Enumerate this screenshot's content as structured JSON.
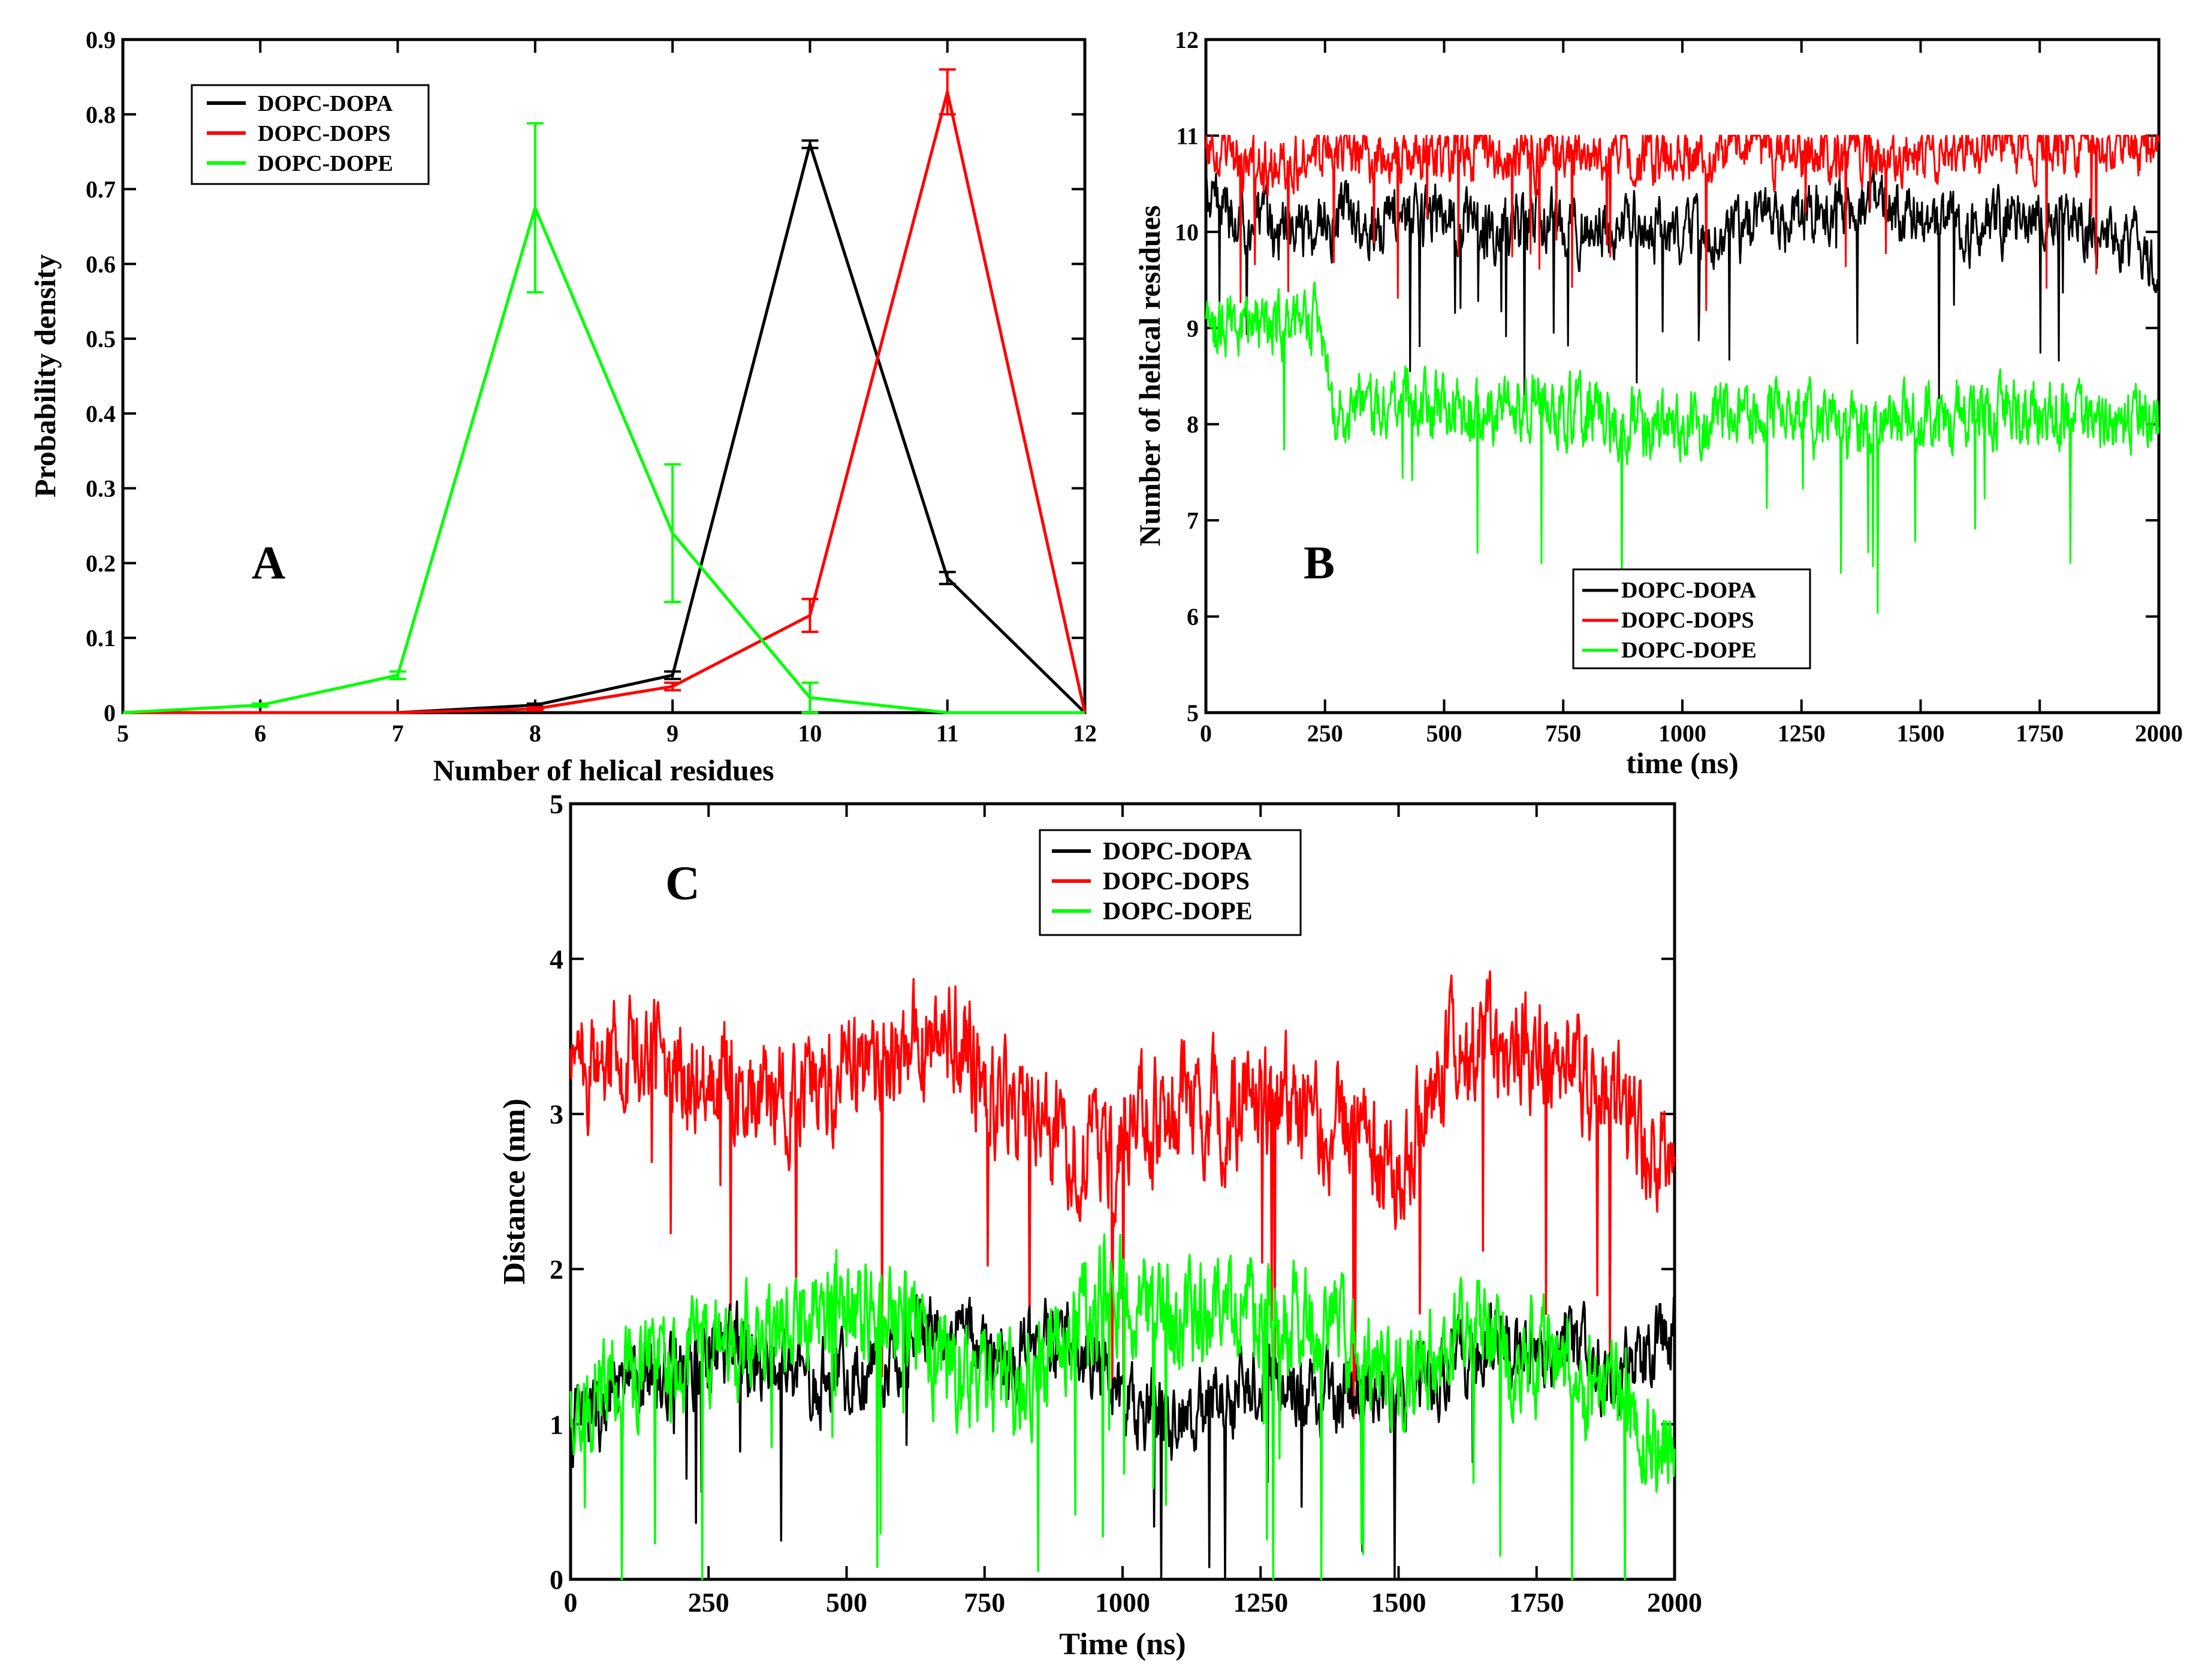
{
  "colors": {
    "DOPC-DOPA": "#000000",
    "DOPC-DOPS": "#ff0000",
    "DOPC-DOPE": "#00ff00",
    "frame": "#000000"
  },
  "chart_data": [
    {
      "panel": "A",
      "type": "line",
      "xlabel": "Number of helical residues",
      "ylabel": "Probability density",
      "xlim": [
        5,
        12
      ],
      "ylim": [
        0,
        0.9
      ],
      "xticks": [
        5,
        6,
        7,
        8,
        9,
        10,
        11,
        12
      ],
      "yticks": [
        0,
        0.1,
        0.2,
        0.3,
        0.4,
        0.5,
        0.6,
        0.7,
        0.8,
        0.9
      ],
      "ytick_labels": [
        "0",
        "0.1",
        "0.2",
        "0.3",
        "0.4",
        "0.5",
        "0.6",
        "0.7",
        "0.8",
        "0.9"
      ],
      "legend_position": "top-left",
      "series": [
        {
          "name": "DOPC-DOPA",
          "x": [
            5,
            6,
            7,
            8,
            9,
            10,
            11,
            12
          ],
          "y": [
            0,
            0,
            0,
            0.01,
            0.05,
            0.76,
            0.18,
            0
          ],
          "errors": [
            0,
            0,
            0,
            0.002,
            0.005,
            0.005,
            0.008,
            0
          ]
        },
        {
          "name": "DOPC-DOPS",
          "x": [
            5,
            6,
            7,
            8,
            9,
            10,
            11,
            12
          ],
          "y": [
            0,
            0,
            0,
            0.005,
            0.035,
            0.13,
            0.83,
            0
          ],
          "errors": [
            0,
            0,
            0,
            0.002,
            0.005,
            0.022,
            0.03,
            0
          ]
        },
        {
          "name": "DOPC-DOPE",
          "x": [
            5,
            6,
            7,
            8,
            9,
            10,
            11,
            12
          ],
          "y": [
            0,
            0.01,
            0.05,
            0.675,
            0.24,
            0.02,
            0,
            0
          ],
          "errors": [
            0,
            0.002,
            0.005,
            0.113,
            0.092,
            0.02,
            0,
            0
          ]
        }
      ]
    },
    {
      "panel": "B",
      "type": "line",
      "xlabel": "time (ns)",
      "ylabel": "Number of helical residues",
      "xlim": [
        0,
        2000
      ],
      "ylim": [
        5,
        12
      ],
      "xticks": [
        0,
        250,
        500,
        750,
        1000,
        1250,
        1500,
        1750,
        2000
      ],
      "yticks": [
        5,
        6,
        7,
        8,
        9,
        10,
        11,
        12
      ],
      "ytick_labels": [
        "5",
        "6",
        "7",
        "8",
        "9",
        "10",
        "11",
        "12"
      ],
      "legend_position": "bottom-center",
      "series": [
        {
          "name": "DOPC-DOPA",
          "x": [
            0,
            100,
            200,
            300,
            400,
            500,
            600,
            700,
            800,
            900,
            1000,
            1100,
            1200,
            1300,
            1400,
            1500,
            1600,
            1700,
            1800,
            1900,
            2000
          ],
          "y": [
            10.3,
            10.1,
            10.0,
            10.2,
            10.1,
            10.2,
            10.0,
            10.1,
            10.0,
            10.1,
            9.9,
            10.0,
            10.1,
            10.2,
            10.3,
            10.1,
            10.0,
            10.1,
            10.2,
            10.0,
            9.7
          ],
          "noise": 0.55
        },
        {
          "name": "DOPC-DOPS",
          "x": [
            0,
            100,
            200,
            300,
            400,
            500,
            600,
            700,
            800,
            900,
            1000,
            1100,
            1200,
            1300,
            1400,
            1500,
            1600,
            1700,
            1800,
            1900,
            2000
          ],
          "y": [
            10.8,
            10.7,
            10.8,
            10.8,
            10.8,
            10.8,
            10.8,
            10.8,
            10.8,
            10.8,
            10.8,
            10.9,
            10.8,
            10.8,
            10.8,
            10.8,
            10.9,
            10.9,
            10.9,
            10.9,
            10.9
          ],
          "noise": 0.5
        },
        {
          "name": "DOPC-DOPE",
          "x": [
            0,
            100,
            200,
            240,
            270,
            300,
            400,
            500,
            600,
            700,
            800,
            900,
            1000,
            1100,
            1200,
            1300,
            1400,
            1500,
            1600,
            1700,
            1800,
            1900,
            2000
          ],
          "y": [
            9.0,
            9.0,
            9.1,
            9.0,
            8.1,
            8.1,
            8.2,
            8.2,
            8.1,
            8.2,
            8.1,
            8.0,
            8.0,
            8.1,
            8.2,
            8.0,
            8.0,
            8.0,
            8.2,
            8.1,
            8.1,
            8.0,
            8.1
          ],
          "noise": 0.6
        }
      ]
    },
    {
      "panel": "C",
      "type": "line",
      "xlabel": "Time (ns)",
      "ylabel": "Distance (nm)",
      "xlim": [
        0,
        2000
      ],
      "ylim": [
        0,
        5
      ],
      "xticks": [
        0,
        250,
        500,
        750,
        1000,
        1250,
        1500,
        1750,
        2000
      ],
      "yticks": [
        0,
        1,
        2,
        3,
        4,
        5
      ],
      "ytick_labels": [
        "0",
        "1",
        "2",
        "3",
        "4",
        "5"
      ],
      "legend_position": "top-center",
      "series": [
        {
          "name": "DOPC-DOPA",
          "x": [
            0,
            100,
            200,
            300,
            400,
            500,
            600,
            700,
            800,
            900,
            1000,
            1100,
            1200,
            1300,
            1400,
            1500,
            1600,
            1700,
            1800,
            1900,
            2000
          ],
          "y": [
            1.0,
            1.2,
            1.4,
            1.5,
            1.3,
            1.3,
            1.5,
            1.6,
            1.4,
            1.6,
            1.2,
            1.0,
            1.2,
            1.3,
            1.2,
            1.2,
            1.4,
            1.5,
            1.5,
            1.3,
            1.7
          ],
          "noise": 0.45
        },
        {
          "name": "DOPC-DOPS",
          "x": [
            0,
            100,
            200,
            300,
            400,
            500,
            600,
            700,
            800,
            900,
            1000,
            1100,
            1200,
            1300,
            1400,
            1500,
            1600,
            1700,
            1800,
            1900,
            2000
          ],
          "y": [
            3.3,
            3.4,
            3.3,
            3.2,
            3.1,
            3.3,
            3.4,
            3.5,
            3.0,
            2.8,
            2.8,
            3.1,
            3.0,
            3.1,
            2.9,
            2.6,
            3.5,
            3.5,
            3.3,
            3.0,
            2.6
          ],
          "noise": 0.65
        },
        {
          "name": "DOPC-DOPE",
          "x": [
            0,
            100,
            200,
            300,
            400,
            500,
            600,
            700,
            800,
            900,
            1000,
            1100,
            1200,
            1300,
            1400,
            1500,
            1600,
            1700,
            1800,
            1900,
            2000
          ],
          "y": [
            1.1,
            1.3,
            1.4,
            1.5,
            1.6,
            1.8,
            1.7,
            1.3,
            1.2,
            1.6,
            1.9,
            1.6,
            1.8,
            1.7,
            1.5,
            1.2,
            1.6,
            1.5,
            1.4,
            1.1,
            0.8
          ],
          "noise": 0.6
        }
      ]
    }
  ]
}
